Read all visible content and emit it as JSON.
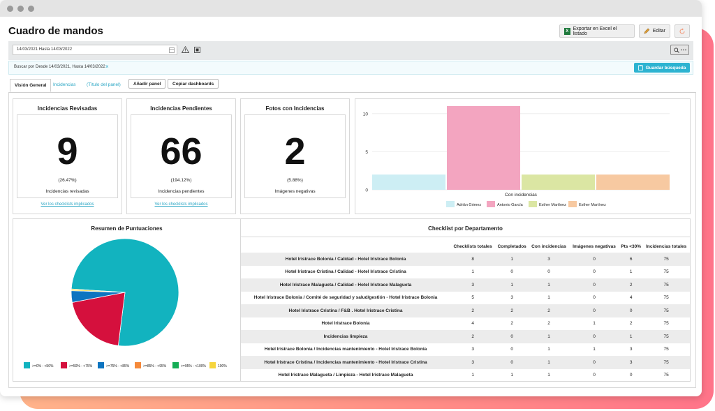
{
  "page": {
    "title": "Cuadro de mandos"
  },
  "header": {
    "export_label": "Exportar en Excel el listado",
    "edit_label": "Editar",
    "excel_icon_letter": "X"
  },
  "filter": {
    "date_range": "14/03/2021 Hasta 14/03/2022",
    "search_by_label": "Buscar por",
    "search_by_value": "Desde  14/03/2021, Hasta 14/03/2022",
    "clear": "×",
    "save_search": "Guardar búsqueda"
  },
  "tabs": {
    "general": "Visión General",
    "incidencias": "Incidencias",
    "panel_title": "(Título del panel)",
    "add_panel": "Añadir panel",
    "copy_dashboards": "Copiar dashboards"
  },
  "kpis": [
    {
      "title": "Incidencias Revisadas",
      "value": "9",
      "percent": "(26.47%)",
      "label": "Incidencias revisadas",
      "link": "Ver los checklists implicados"
    },
    {
      "title": "Incidencias Pendientes",
      "value": "66",
      "percent": "(194.12%)",
      "label": "Incidencias pendientes",
      "link": "Ver los checklists implicados"
    },
    {
      "title": "Fotos con Incidencias",
      "value": "2",
      "percent": "(5.88%)",
      "label": "Imágenes negativas"
    }
  ],
  "bar_panel": {
    "chart_data": {
      "type": "bar",
      "categories": [
        "Con incidencias"
      ],
      "xlabel": "Con incidencias",
      "ylim": [
        0,
        11
      ],
      "yticks": [
        0,
        5,
        10
      ],
      "series": [
        {
          "name": "Adrián Gómez",
          "values": [
            2
          ],
          "color": "#cdeef4"
        },
        {
          "name": "Antonio García",
          "values": [
            11
          ],
          "color": "#f3a5c0"
        },
        {
          "name": "Esther Martínez",
          "values": [
            2
          ],
          "color": "#dbe6a3"
        },
        {
          "name": "Esther Martínez",
          "values": [
            2
          ],
          "color": "#f7c9a1"
        }
      ]
    }
  },
  "pie_panel": {
    "title": "Resumen de Puntuaciones",
    "chart_data": {
      "type": "pie",
      "slices": [
        {
          "label": ">=0% - <50%",
          "value": 76,
          "color": "#12b3bf"
        },
        {
          "label": ">=50% - <75%",
          "value": 20,
          "color": "#d5103d"
        },
        {
          "label": ">=75% - <85%",
          "value": 3.5,
          "color": "#0d74c0"
        },
        {
          "label": ">=85% - <95%",
          "value": 0,
          "color": "#f5893a"
        },
        {
          "label": ">=95% - <100%",
          "value": 0,
          "color": "#15ad55"
        },
        {
          "label": "100%",
          "value": 0.5,
          "color": "#f6d53d"
        }
      ]
    }
  },
  "dept_table": {
    "title": "Checklist por Departamento",
    "columns": [
      "",
      "Checklists totales",
      "Completados",
      "Con incidencias",
      "Imágenes negativas",
      "Pts <30%",
      "Incidencias totales"
    ],
    "rows": [
      [
        "Hotel Iristrace Bolonia / Calidad - Hotel Iristrace Bolonia",
        "8",
        "1",
        "3",
        "0",
        "6",
        "75"
      ],
      [
        "Hotel Iristrace Cristina / Calidad - Hotel Iristrace Cristina",
        "1",
        "0",
        "0",
        "0",
        "1",
        "75"
      ],
      [
        "Hotel Iristrace Malagueta / Calidad - Hotel Iristrace Malagueta",
        "3",
        "1",
        "1",
        "0",
        "2",
        "75"
      ],
      [
        "Hotel Iristrace Bolonia / Comité de seguridad y salud/gestión - Hotel Iristrace Bolonia",
        "5",
        "3",
        "1",
        "0",
        "4",
        "75"
      ],
      [
        "Hotel Iristrace Cristina / F&B . Hotel Iristrace Cristina",
        "2",
        "2",
        "2",
        "0",
        "0",
        "75"
      ],
      [
        "Hotel Iristrace Bolonia",
        "4",
        "2",
        "2",
        "1",
        "2",
        "75"
      ],
      [
        "Incidencias limpieza",
        "2",
        "0",
        "1",
        "0",
        "1",
        "75"
      ],
      [
        "Hotel Iristrace Bolonia / Incidencias mantenimiento - Hotel Iristrace Bolonia",
        "3",
        "0",
        "1",
        "1",
        "3",
        "75"
      ],
      [
        "Hotel Iristrace Cristina / Incidencias mantenimiento - Hotel Iristrace Cristina",
        "3",
        "0",
        "1",
        "0",
        "3",
        "75"
      ],
      [
        "Hotel Iristrace Malagueta / Limpieza - Hotel Iristrace Malagueta",
        "1",
        "1",
        "1",
        "0",
        "0",
        "75"
      ]
    ]
  }
}
